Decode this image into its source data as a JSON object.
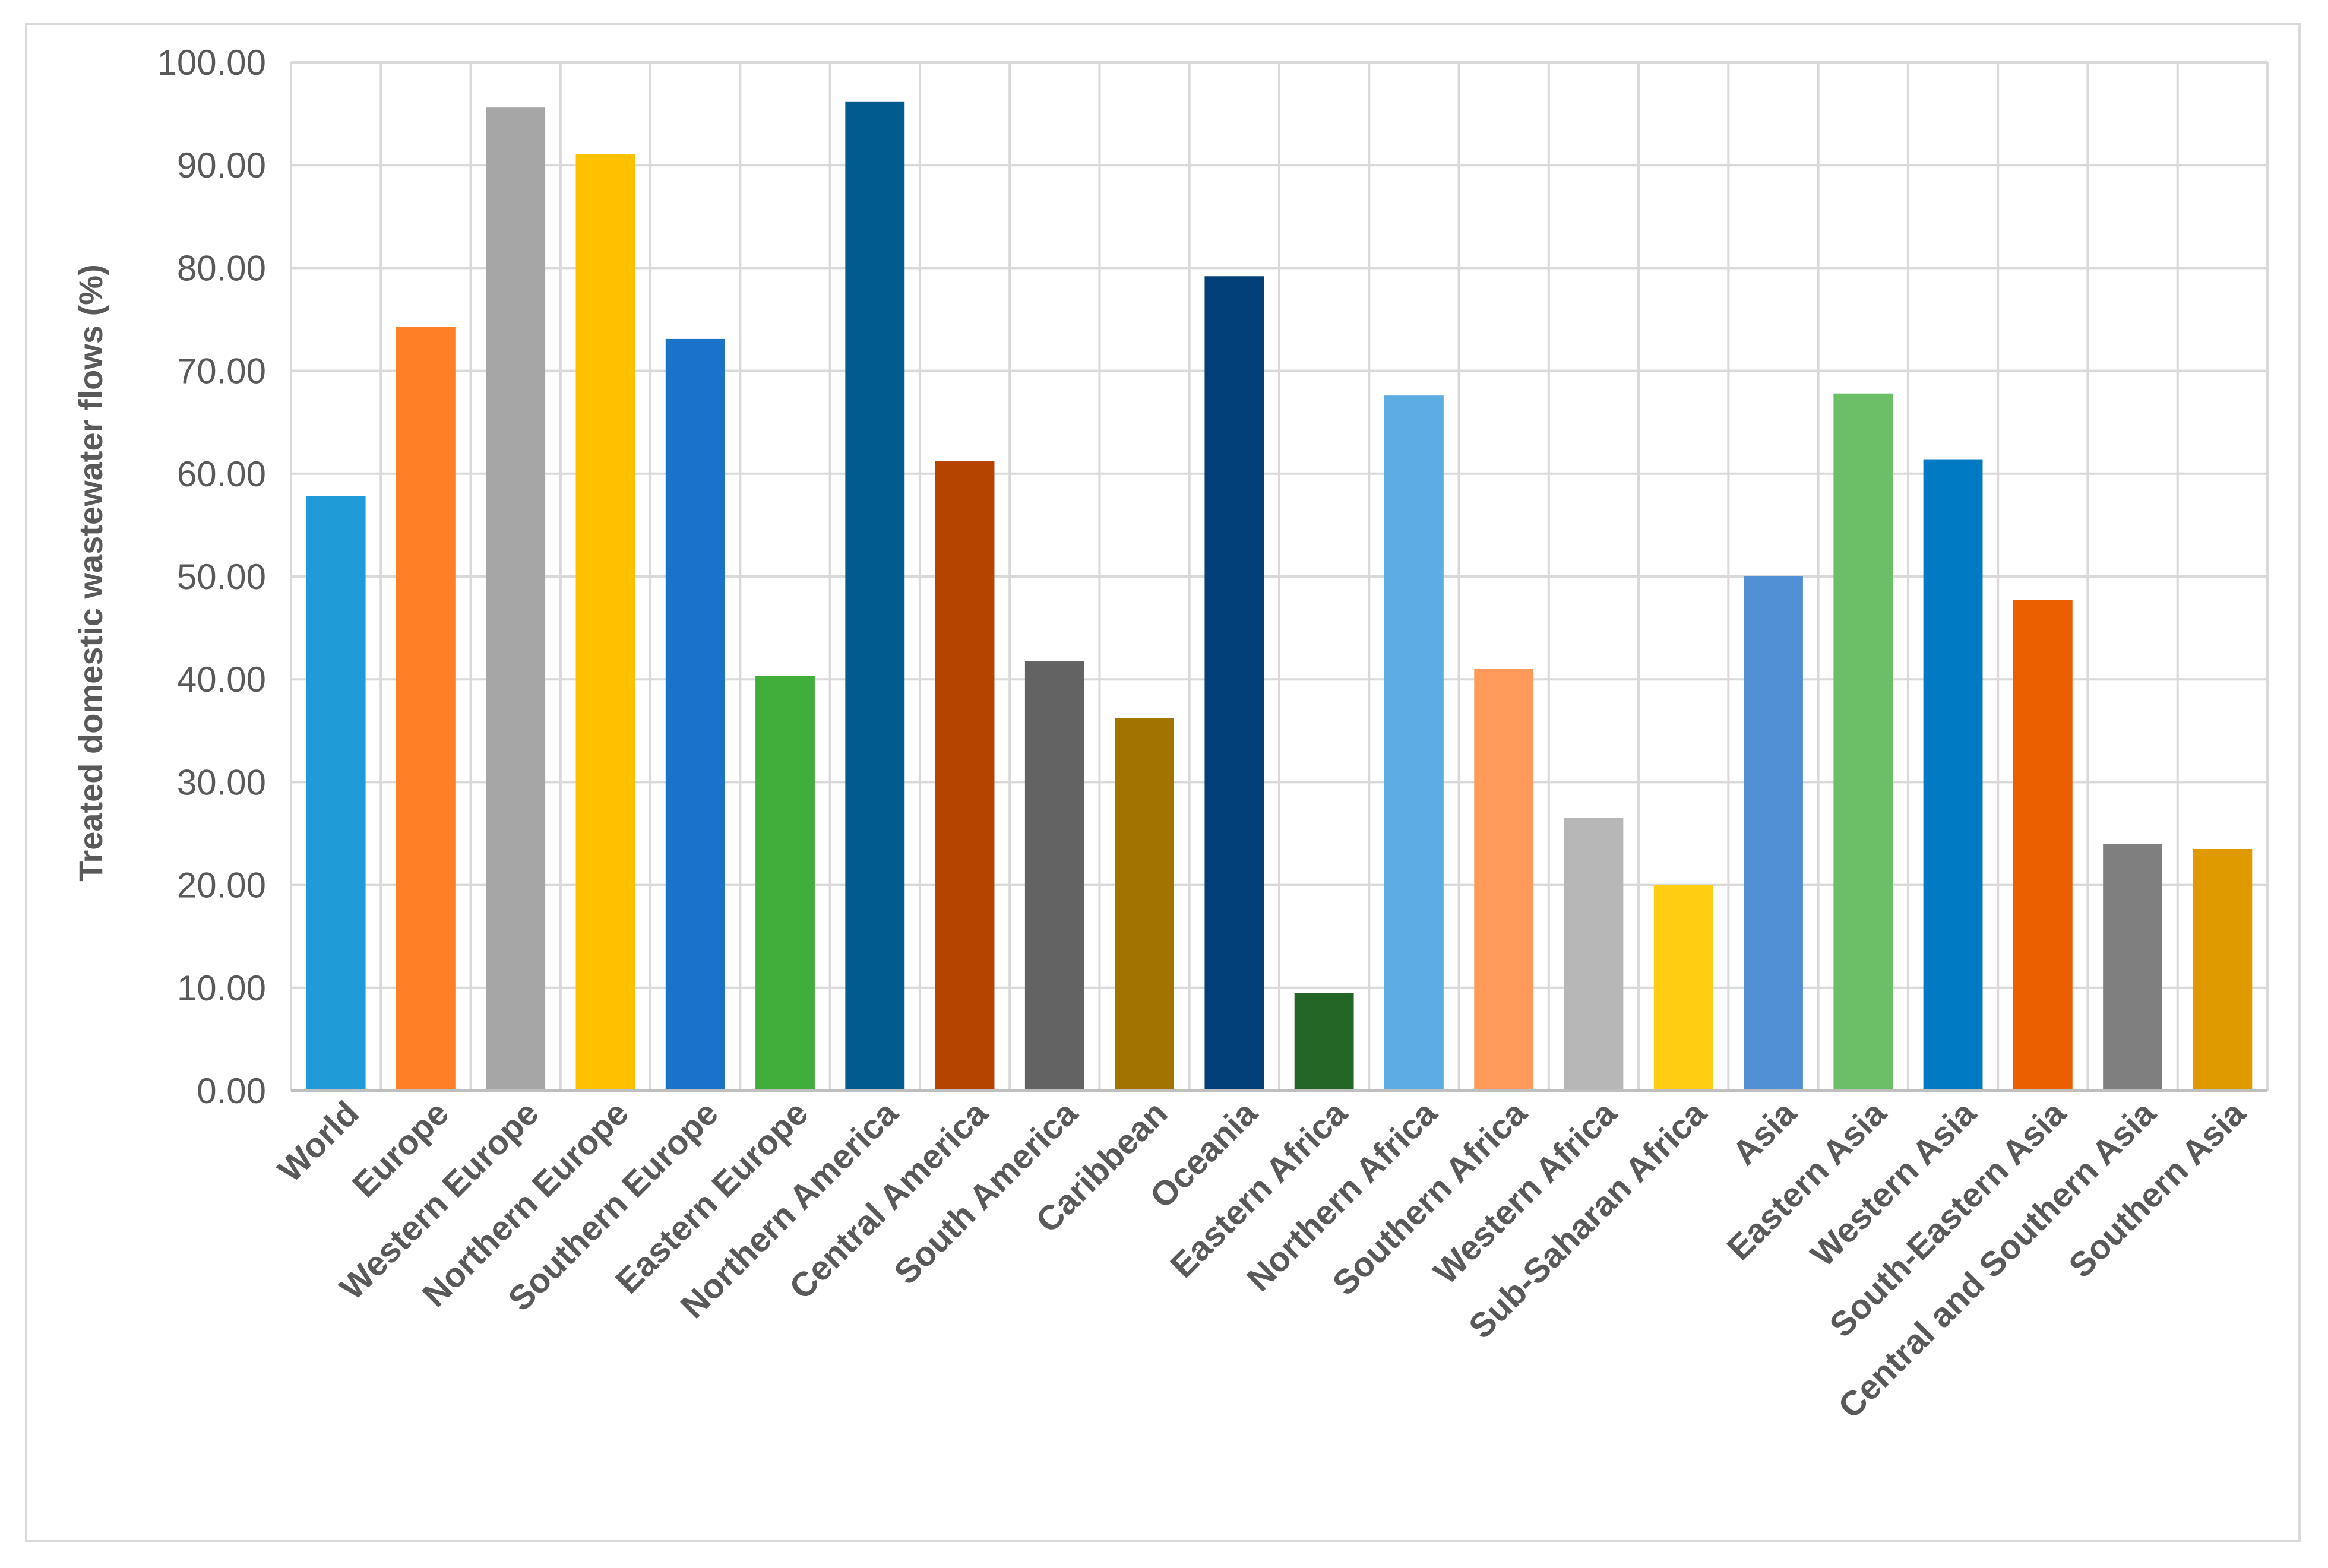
{
  "chart_data": {
    "type": "bar",
    "title": "",
    "xlabel": "",
    "ylabel": "Treated domestic  wastewater flows (%)",
    "ylim": [
      0,
      100
    ],
    "yticks": [
      "0.00",
      "10.00",
      "20.00",
      "30.00",
      "40.00",
      "50.00",
      "60.00",
      "70.00",
      "80.00",
      "90.00",
      "100.00"
    ],
    "grid": true,
    "legend": "none",
    "categories": [
      "World",
      "Europe",
      "Western Europe",
      "Northern Europe",
      "Southern Europe",
      "Eastern Europe",
      "Northern America",
      "Central America",
      "South America",
      "Caribbean",
      "Oceania",
      "Eastern Africa",
      "Northern Africa",
      "Southern Africa",
      "Western Africa",
      "Sub-Saharan Africa",
      "Asia",
      "Eastern Asia",
      "Western Asia",
      "South-Eastern Asia",
      "Central and Southern Asia",
      "Southern Asia"
    ],
    "values": [
      57.8,
      74.3,
      95.6,
      91.1,
      73.1,
      40.3,
      96.2,
      61.2,
      41.8,
      36.2,
      79.2,
      9.5,
      67.6,
      41.0,
      26.5,
      20.0,
      50.0,
      67.8,
      61.4,
      47.7,
      24.0,
      23.5
    ],
    "colors": [
      "#1f9bd7",
      "#ff7f27",
      "#a6a6a6",
      "#ffc000",
      "#1b72c9",
      "#41ae3c",
      "#005b8f",
      "#b64401",
      "#636363",
      "#a37300",
      "#003f78",
      "#236625",
      "#5dade2",
      "#ff9a5a",
      "#b7b7b7",
      "#ffcd11",
      "#518fd4",
      "#6dbf67",
      "#007ac2",
      "#ec5f00",
      "#7f7f7f",
      "#df9a00"
    ]
  }
}
